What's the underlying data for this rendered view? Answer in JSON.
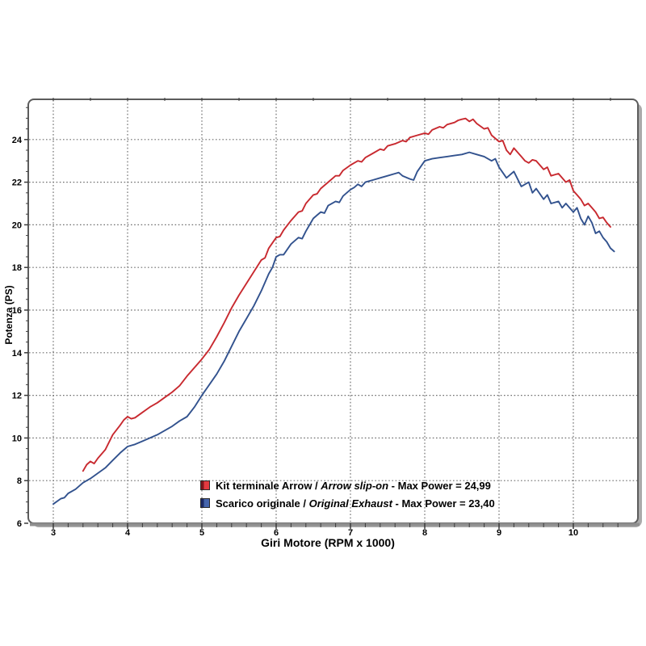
{
  "page": {
    "background": "#ffffff"
  },
  "chart_data": {
    "type": "line",
    "title": "",
    "xlabel": "Giri Motore (RPM x 1000)",
    "ylabel": "Potenza (PS)",
    "xlim": [
      2.66,
      10.87
    ],
    "ylim": [
      6,
      25.9
    ],
    "x_major_ticks": [
      3,
      4,
      5,
      6,
      7,
      8,
      9,
      10
    ],
    "x_tick_labels": [
      "3",
      "4",
      "5",
      "6",
      "7",
      "8",
      "9",
      "10"
    ],
    "x_minor_step": 0.2,
    "y_major_ticks": [
      6,
      8,
      10,
      12,
      14,
      16,
      18,
      20,
      22,
      24
    ],
    "y_tick_labels": [
      "6",
      "8",
      "10",
      "12",
      "14",
      "16",
      "18",
      "20",
      "22",
      "24"
    ],
    "y_minor_step": 0.5,
    "grid": {
      "vertical_at": [
        3,
        4,
        5,
        6,
        7,
        8,
        9,
        10
      ],
      "horizontal_at": [
        8,
        10,
        12,
        14,
        16,
        18,
        20,
        22,
        24
      ],
      "style": "dotted",
      "color": "#6f6f6f"
    },
    "legend_position": "inside-bottom-center",
    "frame": {
      "border_color": "#5c5c5c",
      "shadow_color": "#ababab",
      "baseline_color": "#8f8f8f",
      "background": "#ffffff",
      "tick_color": "#3a3a3a"
    },
    "series": [
      {
        "id": "arrow",
        "name": "Kit terminale Arrow / Arrow slip-on",
        "legend": {
          "prefix": "Kit terminale Arrow / ",
          "italic": "Arrow slip-on",
          "suffix": " - Max Power = 24,99"
        },
        "max_power": "24,99",
        "color": "#c8292f",
        "swatch_dark": "#7d151b",
        "swatch_light": "#e23a40",
        "points": [
          [
            3.4,
            8.45
          ],
          [
            3.45,
            8.75
          ],
          [
            3.5,
            8.9
          ],
          [
            3.55,
            8.8
          ],
          [
            3.6,
            9.05
          ],
          [
            3.7,
            9.45
          ],
          [
            3.8,
            10.15
          ],
          [
            3.9,
            10.6
          ],
          [
            3.95,
            10.85
          ],
          [
            4.0,
            11.0
          ],
          [
            4.05,
            10.9
          ],
          [
            4.1,
            10.95
          ],
          [
            4.2,
            11.2
          ],
          [
            4.3,
            11.45
          ],
          [
            4.4,
            11.65
          ],
          [
            4.5,
            11.9
          ],
          [
            4.6,
            12.15
          ],
          [
            4.7,
            12.45
          ],
          [
            4.8,
            12.9
          ],
          [
            4.9,
            13.3
          ],
          [
            5.0,
            13.7
          ],
          [
            5.1,
            14.15
          ],
          [
            5.2,
            14.75
          ],
          [
            5.3,
            15.4
          ],
          [
            5.4,
            16.1
          ],
          [
            5.5,
            16.7
          ],
          [
            5.6,
            17.25
          ],
          [
            5.7,
            17.8
          ],
          [
            5.8,
            18.35
          ],
          [
            5.85,
            18.45
          ],
          [
            5.9,
            18.9
          ],
          [
            6.0,
            19.4
          ],
          [
            6.05,
            19.45
          ],
          [
            6.1,
            19.75
          ],
          [
            6.2,
            20.2
          ],
          [
            6.3,
            20.6
          ],
          [
            6.35,
            20.65
          ],
          [
            6.4,
            21.0
          ],
          [
            6.5,
            21.4
          ],
          [
            6.55,
            21.45
          ],
          [
            6.6,
            21.7
          ],
          [
            6.7,
            22.0
          ],
          [
            6.8,
            22.3
          ],
          [
            6.85,
            22.3
          ],
          [
            6.9,
            22.55
          ],
          [
            7.0,
            22.8
          ],
          [
            7.05,
            22.9
          ],
          [
            7.1,
            23.0
          ],
          [
            7.15,
            22.95
          ],
          [
            7.2,
            23.15
          ],
          [
            7.3,
            23.35
          ],
          [
            7.4,
            23.55
          ],
          [
            7.45,
            23.5
          ],
          [
            7.5,
            23.7
          ],
          [
            7.6,
            23.8
          ],
          [
            7.7,
            23.95
          ],
          [
            7.75,
            23.9
          ],
          [
            7.8,
            24.1
          ],
          [
            7.9,
            24.2
          ],
          [
            8.0,
            24.3
          ],
          [
            8.05,
            24.25
          ],
          [
            8.1,
            24.45
          ],
          [
            8.2,
            24.6
          ],
          [
            8.25,
            24.55
          ],
          [
            8.3,
            24.7
          ],
          [
            8.4,
            24.8
          ],
          [
            8.45,
            24.9
          ],
          [
            8.5,
            24.95
          ],
          [
            8.55,
            24.99
          ],
          [
            8.6,
            24.85
          ],
          [
            8.65,
            24.95
          ],
          [
            8.7,
            24.75
          ],
          [
            8.8,
            24.5
          ],
          [
            8.85,
            24.55
          ],
          [
            8.9,
            24.2
          ],
          [
            9.0,
            23.9
          ],
          [
            9.05,
            23.95
          ],
          [
            9.1,
            23.5
          ],
          [
            9.15,
            23.3
          ],
          [
            9.2,
            23.6
          ],
          [
            9.3,
            23.2
          ],
          [
            9.35,
            23.0
          ],
          [
            9.4,
            22.9
          ],
          [
            9.45,
            23.05
          ],
          [
            9.5,
            23.0
          ],
          [
            9.6,
            22.6
          ],
          [
            9.65,
            22.7
          ],
          [
            9.7,
            22.3
          ],
          [
            9.8,
            22.4
          ],
          [
            9.9,
            22.0
          ],
          [
            9.95,
            22.1
          ],
          [
            10.0,
            21.6
          ],
          [
            10.05,
            21.4
          ],
          [
            10.1,
            21.2
          ],
          [
            10.15,
            20.9
          ],
          [
            10.2,
            21.0
          ],
          [
            10.25,
            20.8
          ],
          [
            10.3,
            20.6
          ],
          [
            10.35,
            20.3
          ],
          [
            10.4,
            20.35
          ],
          [
            10.45,
            20.1
          ],
          [
            10.5,
            19.9
          ]
        ]
      },
      {
        "id": "original",
        "name": "Scarico originale / Original Exhaust",
        "legend": {
          "prefix": "Scarico originale / ",
          "italic": "Original Exhaust",
          "suffix": " - Max Power = 23,40"
        },
        "max_power": "23,40",
        "color": "#32528e",
        "swatch_dark": "#1c2a66",
        "swatch_light": "#4565ac",
        "points": [
          [
            3.0,
            6.9
          ],
          [
            3.1,
            7.15
          ],
          [
            3.15,
            7.2
          ],
          [
            3.2,
            7.4
          ],
          [
            3.3,
            7.6
          ],
          [
            3.4,
            7.9
          ],
          [
            3.5,
            8.1
          ],
          [
            3.6,
            8.35
          ],
          [
            3.7,
            8.6
          ],
          [
            3.8,
            8.95
          ],
          [
            3.9,
            9.3
          ],
          [
            4.0,
            9.6
          ],
          [
            4.05,
            9.65
          ],
          [
            4.1,
            9.7
          ],
          [
            4.2,
            9.85
          ],
          [
            4.3,
            10.0
          ],
          [
            4.4,
            10.15
          ],
          [
            4.5,
            10.35
          ],
          [
            4.6,
            10.55
          ],
          [
            4.7,
            10.8
          ],
          [
            4.8,
            11.0
          ],
          [
            4.9,
            11.45
          ],
          [
            5.0,
            12.0
          ],
          [
            5.1,
            12.5
          ],
          [
            5.2,
            13.0
          ],
          [
            5.3,
            13.6
          ],
          [
            5.4,
            14.3
          ],
          [
            5.5,
            15.0
          ],
          [
            5.6,
            15.6
          ],
          [
            5.7,
            16.2
          ],
          [
            5.8,
            16.9
          ],
          [
            5.9,
            17.7
          ],
          [
            5.95,
            18.0
          ],
          [
            6.0,
            18.5
          ],
          [
            6.05,
            18.6
          ],
          [
            6.1,
            18.6
          ],
          [
            6.2,
            19.1
          ],
          [
            6.3,
            19.4
          ],
          [
            6.35,
            19.35
          ],
          [
            6.4,
            19.7
          ],
          [
            6.5,
            20.3
          ],
          [
            6.55,
            20.45
          ],
          [
            6.6,
            20.6
          ],
          [
            6.65,
            20.55
          ],
          [
            6.7,
            20.9
          ],
          [
            6.8,
            21.1
          ],
          [
            6.85,
            21.05
          ],
          [
            6.9,
            21.35
          ],
          [
            7.0,
            21.65
          ],
          [
            7.05,
            21.75
          ],
          [
            7.1,
            21.9
          ],
          [
            7.15,
            21.8
          ],
          [
            7.2,
            22.0
          ],
          [
            7.3,
            22.1
          ],
          [
            7.4,
            22.2
          ],
          [
            7.5,
            22.3
          ],
          [
            7.6,
            22.4
          ],
          [
            7.65,
            22.45
          ],
          [
            7.7,
            22.3
          ],
          [
            7.8,
            22.15
          ],
          [
            7.85,
            22.1
          ],
          [
            7.9,
            22.5
          ],
          [
            8.0,
            23.0
          ],
          [
            8.1,
            23.1
          ],
          [
            8.2,
            23.15
          ],
          [
            8.3,
            23.2
          ],
          [
            8.4,
            23.25
          ],
          [
            8.5,
            23.3
          ],
          [
            8.6,
            23.4
          ],
          [
            8.7,
            23.3
          ],
          [
            8.8,
            23.2
          ],
          [
            8.9,
            23.0
          ],
          [
            8.95,
            23.1
          ],
          [
            9.0,
            22.7
          ],
          [
            9.1,
            22.2
          ],
          [
            9.2,
            22.5
          ],
          [
            9.3,
            21.8
          ],
          [
            9.4,
            22.0
          ],
          [
            9.45,
            21.5
          ],
          [
            9.5,
            21.7
          ],
          [
            9.6,
            21.2
          ],
          [
            9.65,
            21.4
          ],
          [
            9.7,
            21.0
          ],
          [
            9.8,
            21.1
          ],
          [
            9.85,
            20.8
          ],
          [
            9.9,
            21.0
          ],
          [
            10.0,
            20.6
          ],
          [
            10.05,
            20.8
          ],
          [
            10.1,
            20.3
          ],
          [
            10.15,
            20.0
          ],
          [
            10.2,
            20.4
          ],
          [
            10.25,
            20.1
          ],
          [
            10.3,
            19.6
          ],
          [
            10.35,
            19.7
          ],
          [
            10.4,
            19.4
          ],
          [
            10.45,
            19.2
          ],
          [
            10.5,
            18.9
          ],
          [
            10.55,
            18.75
          ]
        ]
      }
    ]
  }
}
